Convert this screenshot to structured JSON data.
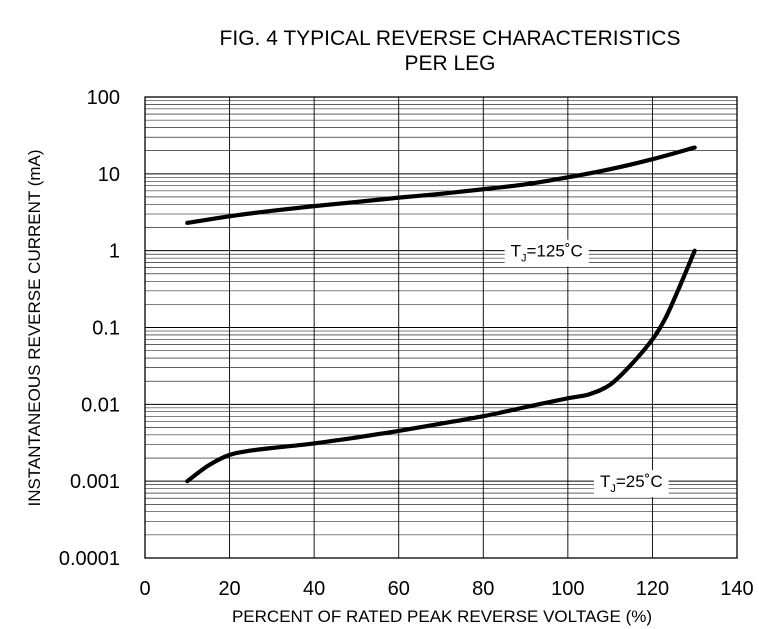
{
  "chart_data": {
    "type": "line",
    "title": "FIG. 4 TYPICAL REVERSE CHARACTERISTICS",
    "subtitle": "PER LEG",
    "xlabel": "PERCENT OF RATED PEAK REVERSE VOLTAGE (%)",
    "ylabel": "INSTANTANEOUS REVERSE CURRENT (mA)",
    "xlim": [
      0,
      140
    ],
    "ylim": [
      0.0001,
      100
    ],
    "yscale": "log",
    "grid": true,
    "x_ticks": [
      "0",
      "20",
      "40",
      "60",
      "80",
      "100",
      "120",
      "140"
    ],
    "y_ticks": [
      "0.0001",
      "0.001",
      "0.01",
      "0.1",
      "1",
      "10",
      "100"
    ],
    "annotations": [
      {
        "main": "T",
        "sub": "J",
        "text": "=125˚C",
        "x": 95,
        "y": 1
      },
      {
        "main": "T",
        "sub": "J",
        "text": "=25˚C",
        "x": 115,
        "y": 0.001
      }
    ],
    "series": [
      {
        "x": [
          10,
          20,
          30,
          40,
          50,
          60,
          70,
          80,
          90,
          100,
          110,
          120,
          130
        ],
        "y": [
          2.3,
          2.8,
          3.3,
          3.8,
          4.3,
          4.9,
          5.5,
          6.3,
          7.3,
          9.0,
          11.5,
          15.5,
          22
        ]
      },
      {
        "x": [
          10,
          15,
          20,
          25,
          30,
          40,
          50,
          60,
          70,
          80,
          90,
          100,
          105,
          110,
          115,
          120,
          123,
          126,
          130
        ],
        "y": [
          0.001,
          0.0016,
          0.0022,
          0.0025,
          0.0027,
          0.0031,
          0.0037,
          0.0045,
          0.0056,
          0.007,
          0.0092,
          0.012,
          0.0135,
          0.018,
          0.033,
          0.07,
          0.13,
          0.3,
          1.0
        ]
      }
    ]
  }
}
